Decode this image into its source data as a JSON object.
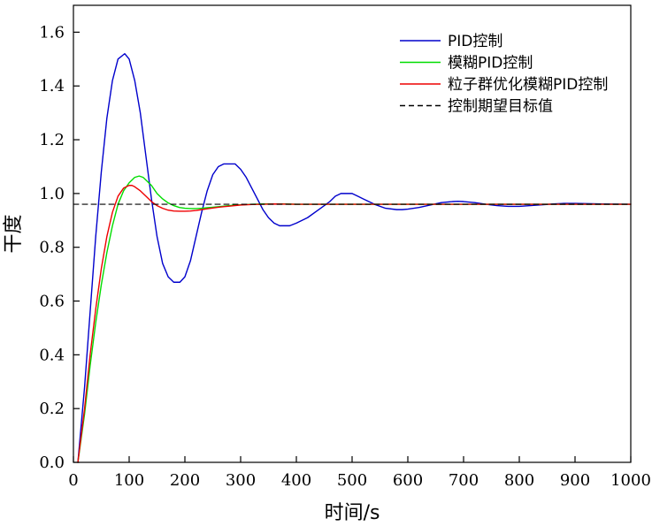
{
  "chart_data": {
    "type": "line",
    "title": "",
    "xlabel": "时间/s",
    "ylabel": "干度",
    "xlim": [
      0,
      1000
    ],
    "ylim": [
      0,
      1.7
    ],
    "xticks": [
      0,
      100,
      200,
      300,
      400,
      500,
      600,
      700,
      800,
      900,
      1000
    ],
    "xtick_labels": [
      "0",
      "100",
      "200",
      "300",
      "400",
      "500",
      "600",
      "700",
      "800",
      "900",
      "1000"
    ],
    "yticks": [
      0,
      0.2,
      0.4,
      0.6,
      0.8,
      1.0,
      1.2,
      1.4,
      1.6
    ],
    "ytick_labels": [
      "0.0",
      "0.2",
      "0.4",
      "0.6",
      "0.8",
      "1.0",
      "1.2",
      "1.4",
      "1.6"
    ],
    "grid": false,
    "legend_position": "top-right",
    "series": [
      {
        "name": "PID控制",
        "color": "#0000cc",
        "dash": "solid",
        "x": [
          8,
          20,
          30,
          40,
          50,
          60,
          70,
          80,
          92,
          100,
          110,
          120,
          130,
          140,
          150,
          160,
          170,
          180,
          191,
          200,
          210,
          220,
          230,
          240,
          250,
          260,
          270,
          280,
          290,
          300,
          310,
          320,
          330,
          340,
          350,
          360,
          370,
          380,
          388,
          400,
          420,
          440,
          460,
          470,
          480,
          490,
          500,
          510,
          520,
          540,
          560,
          580,
          590,
          600,
          620,
          640,
          660,
          680,
          690,
          700,
          720,
          740,
          760,
          780,
          800,
          820,
          840,
          860,
          880,
          900,
          950,
          1000
        ],
        "values": [
          0.0,
          0.28,
          0.56,
          0.84,
          1.08,
          1.28,
          1.42,
          1.5,
          1.52,
          1.5,
          1.42,
          1.3,
          1.14,
          0.98,
          0.84,
          0.74,
          0.69,
          0.67,
          0.67,
          0.69,
          0.75,
          0.84,
          0.93,
          1.01,
          1.07,
          1.1,
          1.11,
          1.11,
          1.11,
          1.09,
          1.06,
          1.02,
          0.98,
          0.94,
          0.91,
          0.89,
          0.88,
          0.88,
          0.88,
          0.89,
          0.91,
          0.94,
          0.97,
          0.99,
          1.0,
          1.0,
          1.0,
          0.99,
          0.98,
          0.96,
          0.945,
          0.94,
          0.94,
          0.942,
          0.948,
          0.957,
          0.966,
          0.97,
          0.971,
          0.97,
          0.966,
          0.96,
          0.955,
          0.952,
          0.952,
          0.955,
          0.958,
          0.961,
          0.963,
          0.963,
          0.961,
          0.96
        ]
      },
      {
        "name": "模糊PID控制",
        "color": "#00dd00",
        "dash": "solid",
        "x": [
          8,
          20,
          30,
          40,
          50,
          60,
          70,
          80,
          90,
          100,
          110,
          118,
          125,
          130,
          140,
          150,
          160,
          170,
          180,
          190,
          200,
          210,
          220,
          230,
          240,
          250,
          260,
          270,
          280,
          290,
          300,
          320,
          340,
          360,
          380,
          400,
          450,
          500,
          600,
          700,
          800,
          900,
          1000
        ],
        "values": [
          0.0,
          0.18,
          0.36,
          0.52,
          0.66,
          0.78,
          0.88,
          0.96,
          1.01,
          1.04,
          1.06,
          1.065,
          1.06,
          1.05,
          1.03,
          1.0,
          0.98,
          0.965,
          0.955,
          0.948,
          0.945,
          0.944,
          0.944,
          0.945,
          0.947,
          0.949,
          0.951,
          0.953,
          0.955,
          0.957,
          0.958,
          0.96,
          0.961,
          0.961,
          0.961,
          0.96,
          0.96,
          0.96,
          0.96,
          0.96,
          0.96,
          0.96,
          0.96
        ]
      },
      {
        "name": "粒子群优化模糊PID控制",
        "color": "#ee0000",
        "dash": "solid",
        "x": [
          8,
          20,
          30,
          40,
          50,
          60,
          70,
          80,
          90,
          100,
          105,
          110,
          120,
          130,
          140,
          150,
          160,
          170,
          180,
          190,
          200,
          210,
          220,
          230,
          240,
          250,
          260,
          280,
          300,
          320,
          340,
          360,
          400,
          450,
          500,
          600,
          700,
          800,
          900,
          1000
        ],
        "values": [
          0.0,
          0.2,
          0.4,
          0.57,
          0.72,
          0.84,
          0.93,
          0.99,
          1.02,
          1.03,
          1.03,
          1.025,
          1.01,
          0.99,
          0.97,
          0.955,
          0.945,
          0.938,
          0.935,
          0.934,
          0.934,
          0.935,
          0.937,
          0.94,
          0.943,
          0.946,
          0.949,
          0.953,
          0.957,
          0.959,
          0.96,
          0.961,
          0.96,
          0.96,
          0.96,
          0.96,
          0.96,
          0.96,
          0.96,
          0.96
        ]
      },
      {
        "name": "控制期望目标值",
        "color": "#000000",
        "dash": "dashed",
        "x": [
          0,
          1000
        ],
        "values": [
          0.96,
          0.96
        ]
      }
    ]
  }
}
